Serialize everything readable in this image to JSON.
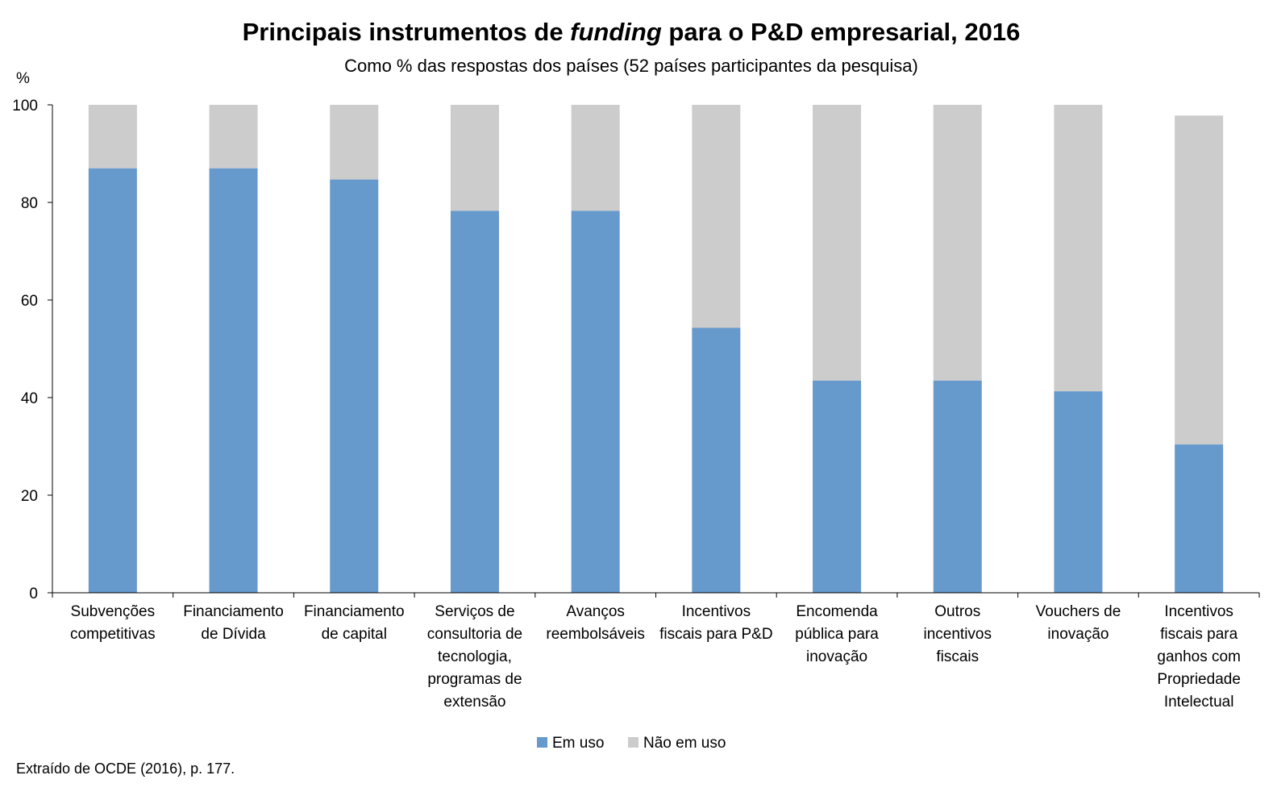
{
  "chart_data": {
    "type": "bar",
    "stacked": true,
    "title_pre": "Principais instrumentos de ",
    "title_em": "funding",
    "title_post": " para o P&D empresarial, 2016",
    "subtitle": "Como % das respostas dos países (52 países participantes da pesquisa)",
    "ylabel": "%",
    "ylim": [
      0,
      100
    ],
    "yticks": [
      0,
      20,
      40,
      60,
      80,
      100
    ],
    "grid": false,
    "legend_position": "bottom",
    "categories": [
      [
        "Subvenções",
        "competitivas"
      ],
      [
        "Financiamento",
        "de Dívida"
      ],
      [
        "Financiamento",
        "de capital"
      ],
      [
        "Serviços de",
        "consultoria de",
        "tecnologia,",
        "programas de",
        "extensão"
      ],
      [
        "Avanços",
        "reembolsáveis"
      ],
      [
        "Incentivos",
        "fiscais para P&D"
      ],
      [
        "Encomenda",
        "pública para",
        "inovação"
      ],
      [
        "Outros",
        "incentivos",
        "fiscais"
      ],
      [
        "Vouchers de",
        "inovação"
      ],
      [
        "Incentivos",
        "fiscais para",
        "ganhos com",
        "Propriedade",
        "Intelectual"
      ]
    ],
    "series": [
      {
        "name": "Em uso",
        "color": "#6699cc",
        "values": [
          87,
          87,
          84.7,
          78.3,
          78.3,
          54.3,
          43.5,
          43.5,
          41.3,
          30.4
        ]
      },
      {
        "name": "Não em uso",
        "color": "#cccccc",
        "values": [
          13,
          13,
          15.3,
          21.7,
          21.7,
          45.7,
          56.5,
          56.5,
          58.7,
          67.4
        ]
      }
    ]
  },
  "footer": "Extraído de OCDE (2016), p. 177."
}
